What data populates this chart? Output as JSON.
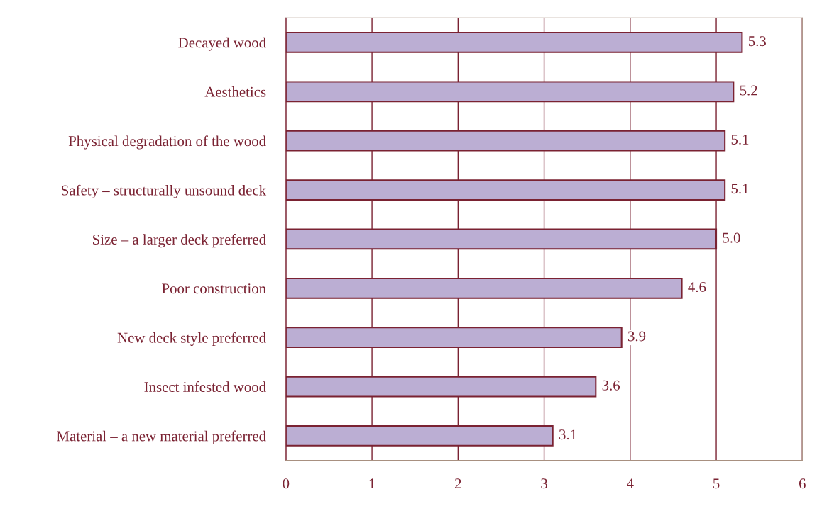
{
  "chart_data": {
    "type": "bar",
    "orientation": "horizontal",
    "categories": [
      "Decayed wood",
      "Aesthetics",
      "Physical degradation of the wood",
      "Safety – structurally unsound deck",
      "Size – a larger deck preferred",
      "Poor construction",
      "New deck style preferred",
      "Insect infested wood",
      "Material – a new material preferred"
    ],
    "values": [
      5.3,
      5.2,
      5.1,
      5.1,
      5.0,
      4.6,
      3.9,
      3.6,
      3.1
    ],
    "value_labels": [
      "5.3",
      "5.2",
      "5.1",
      "5.1",
      "5.0",
      "4.6",
      "3.9",
      "3.6",
      "3.1"
    ],
    "color": "#bbaed3",
    "xlim": [
      0,
      6
    ],
    "xticks": [
      0,
      1,
      2,
      3,
      4,
      5,
      6
    ],
    "grid": "x"
  }
}
